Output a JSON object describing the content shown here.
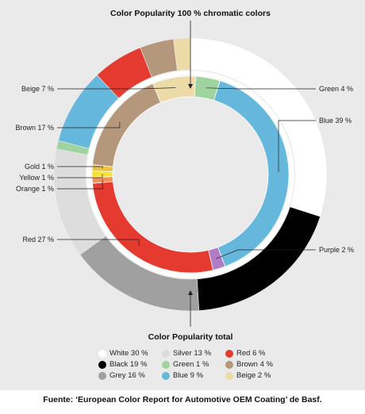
{
  "chart_data": {
    "type": "pie",
    "title": "Color Popularity  100 % chromatic colors",
    "outer_title": "Color Popularity total",
    "inner_ring": {
      "name": "Color Popularity  100 % chromatic colors",
      "slices": [
        {
          "name": "Green",
          "value": 4,
          "label": "Green 4 %",
          "color": "#9fd39f",
          "side": "right"
        },
        {
          "name": "Blue",
          "value": 39,
          "label": "Blue 39 %",
          "color": "#66b7dc",
          "side": "right"
        },
        {
          "name": "Purple",
          "value": 2,
          "label": "Purple 2 %",
          "color": "#b07cc6",
          "side": "right"
        },
        {
          "name": "Red",
          "value": 27,
          "label": "Red 27 %",
          "color": "#e43a2f",
          "side": "left"
        },
        {
          "name": "Orange",
          "value": 1,
          "label": "Orange 1 %",
          "color": "#f0915a",
          "side": "left"
        },
        {
          "name": "Yellow",
          "value": 1,
          "label": "Yellow 1 %",
          "color": "#f6e236",
          "side": "left"
        },
        {
          "name": "Gold",
          "value": 1,
          "label": "Gold 1 %",
          "color": "#e9c24a",
          "side": "left"
        },
        {
          "name": "Brown",
          "value": 17,
          "label": "Brown 17 %",
          "color": "#b5977b",
          "side": "left"
        },
        {
          "name": "Beige",
          "value": 7,
          "label": "Beige 7 %",
          "color": "#ecdba6",
          "side": "left"
        }
      ]
    },
    "outer_ring": {
      "name": "Color Popularity total",
      "slices": [
        {
          "name": "White",
          "value": 30,
          "color": "#ffffff"
        },
        {
          "name": "Black",
          "value": 19,
          "color": "#000000"
        },
        {
          "name": "Grey",
          "value": 16,
          "color": "#a0a0a0"
        },
        {
          "name": "Silver",
          "value": 13,
          "color": "#dddddd"
        },
        {
          "name": "Green",
          "value": 1,
          "color": "#9fd39f"
        },
        {
          "name": "Blue",
          "value": 9,
          "color": "#66b7dc"
        },
        {
          "name": "Red",
          "value": 6,
          "color": "#e43a2f"
        },
        {
          "name": "Brown",
          "value": 4,
          "color": "#b5977b"
        },
        {
          "name": "Beige",
          "value": 2,
          "color": "#ecdba6"
        }
      ]
    },
    "legend": [
      {
        "label": "White 30 %",
        "color": "#ffffff"
      },
      {
        "label": "Silver 13 %",
        "color": "#dddddd"
      },
      {
        "label": "Red 6 %",
        "color": "#e43a2f"
      },
      {
        "label": "Black 19 %",
        "color": "#000000"
      },
      {
        "label": "Green 1 %",
        "color": "#9fd39f"
      },
      {
        "label": "Brown 4 %",
        "color": "#b5977b"
      },
      {
        "label": "Grey 16 %",
        "color": "#a0a0a0"
      },
      {
        "label": "Blue 9 %",
        "color": "#66b7dc"
      },
      {
        "label": "Beige 2 %",
        "color": "#ecdba6"
      }
    ]
  },
  "source": "Fuente: ‘European Color Report for Automotive OEM Coating’ de Basf."
}
